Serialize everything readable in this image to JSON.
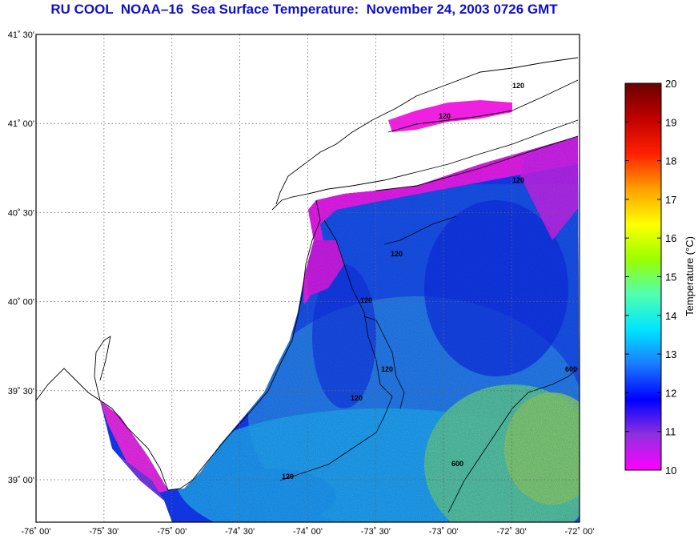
{
  "title": "RU COOL  NOAA–16  Sea Surface Temperature:  November 24, 2003 0726 GMT",
  "map": {
    "lon_ticks": [
      "-76˚ 00'",
      "-75˚ 30'",
      "-75˚ 00'",
      "-74˚ 30'",
      "-74˚ 00'",
      "-73˚ 30'",
      "-73˚ 00'",
      "-72˚ 30'",
      "-72˚ 00'"
    ],
    "lat_ticks": [
      "41˚ 30'",
      "41˚ 00'",
      "40˚ 30'",
      "40˚ 00'",
      "39˚ 30'",
      "39˚ 00'"
    ],
    "contour_labels": [
      "120",
      "120",
      "120",
      "120",
      "120",
      "120",
      "120",
      "120",
      "600",
      "600"
    ]
  },
  "colorbar": {
    "label": "Temperature (°C)",
    "ticks": [
      "20",
      "19",
      "18",
      "17",
      "16",
      "15",
      "14",
      "13",
      "12",
      "11",
      "10"
    ],
    "colors": [
      "#ff00ff",
      "#9030e0",
      "#0000ff",
      "#1a7bff",
      "#00e5ff",
      "#50ffb0",
      "#9aff00",
      "#ffff00",
      "#ffa000",
      "#ff2000",
      "#c00000",
      "#6b0000"
    ]
  }
}
